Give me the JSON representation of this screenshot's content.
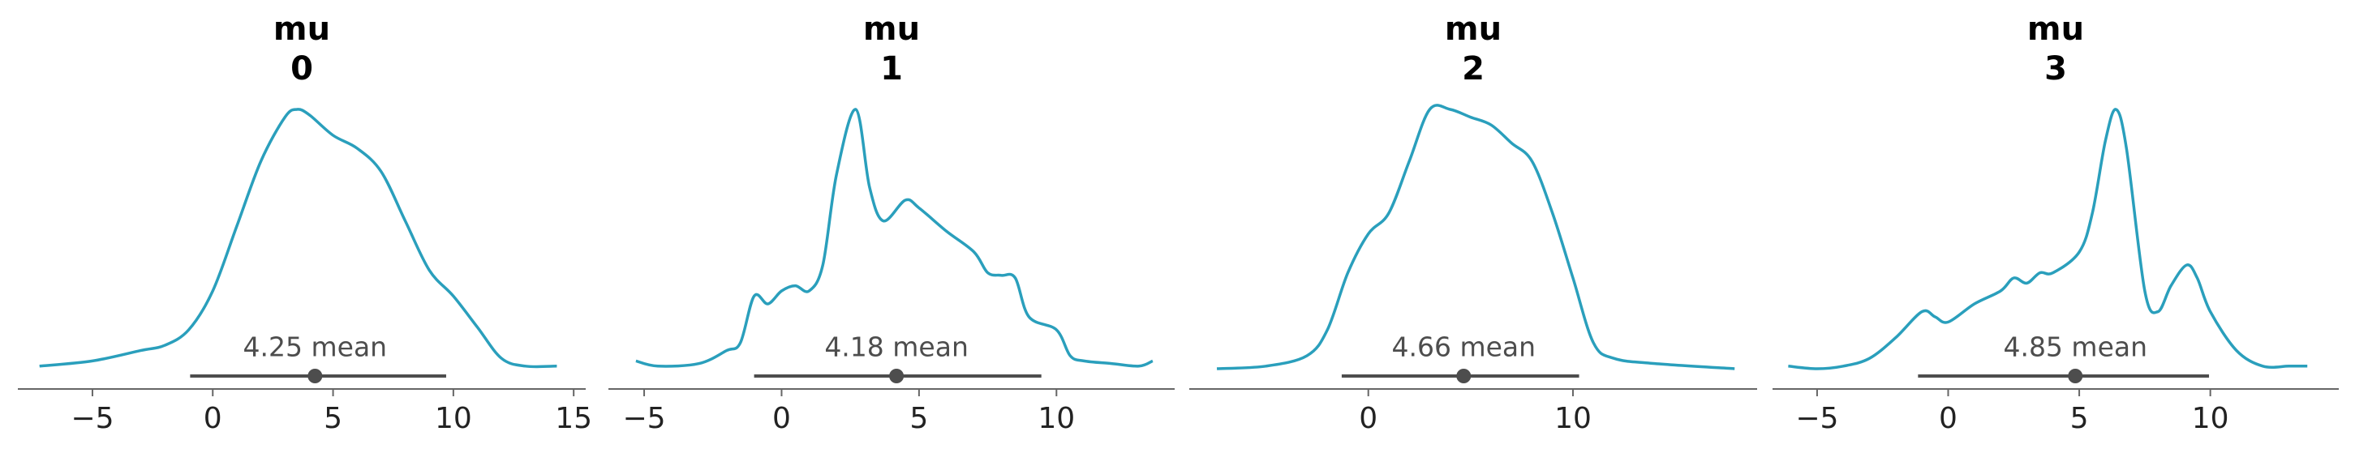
{
  "chart_data": [
    {
      "type": "density",
      "title_lines": [
        "mu",
        "0"
      ],
      "color": "#2a9fbc",
      "x": [
        -7.2,
        -5,
        -3,
        -2,
        -1,
        0,
        1,
        2,
        3,
        3.5,
        4,
        5,
        6,
        7,
        8,
        9,
        10,
        11,
        12,
        13,
        14.3
      ],
      "values": [
        0.01,
        0.03,
        0.07,
        0.09,
        0.15,
        0.3,
        0.55,
        0.8,
        0.97,
        1.0,
        0.98,
        0.9,
        0.85,
        0.76,
        0.57,
        0.38,
        0.28,
        0.16,
        0.04,
        0.01,
        0.01
      ],
      "hdi": [
        -0.94,
        9.7
      ],
      "mean": 4.25,
      "mean_label": "4.25 mean",
      "xlim": [
        -8.1,
        15.5
      ],
      "xticks": [
        {
          "value": -5,
          "label": "−5"
        },
        0,
        5,
        10,
        15
      ]
    },
    {
      "type": "density",
      "title_lines": [
        "mu",
        "1"
      ],
      "color": "#2a9fbc",
      "x": [
        -5.3,
        -4.5,
        -3,
        -2,
        -1.5,
        -1,
        -0.5,
        0,
        0.5,
        1,
        1.5,
        2,
        2.7,
        3.2,
        3.7,
        4.5,
        5,
        6,
        7,
        7.5,
        8,
        8.5,
        9,
        10,
        10.5,
        11,
        12,
        13,
        13.5
      ],
      "values": [
        0.03,
        0.01,
        0.02,
        0.07,
        0.1,
        0.28,
        0.25,
        0.3,
        0.32,
        0.3,
        0.4,
        0.75,
        1.0,
        0.7,
        0.57,
        0.65,
        0.62,
        0.53,
        0.45,
        0.37,
        0.36,
        0.35,
        0.2,
        0.15,
        0.05,
        0.03,
        0.02,
        0.01,
        0.03
      ],
      "hdi": [
        -1.0,
        9.45
      ],
      "mean": 4.18,
      "mean_label": "4.18 mean",
      "xlim": [
        -6.3,
        14.3
      ],
      "xticks": [
        {
          "value": -5,
          "label": "−5"
        },
        0,
        5,
        10
      ]
    },
    {
      "type": "density",
      "title_lines": [
        "mu",
        "2"
      ],
      "color": "#2a9fbc",
      "x": [
        -7.4,
        -5,
        -3,
        -2,
        -1,
        0,
        1,
        2,
        3,
        4,
        5,
        6,
        7,
        8,
        9,
        10,
        11,
        12,
        14,
        17.9
      ],
      "values": [
        0.0,
        0.01,
        0.05,
        0.15,
        0.37,
        0.52,
        0.6,
        0.8,
        1.0,
        1.0,
        0.97,
        0.94,
        0.87,
        0.8,
        0.6,
        0.35,
        0.1,
        0.04,
        0.02,
        0.0
      ],
      "hdi": [
        -1.3,
        10.3
      ],
      "mean": 4.66,
      "mean_label": "4.66 mean",
      "xlim": [
        -8.75,
        19.0
      ],
      "xticks": [
        0,
        10
      ]
    },
    {
      "type": "density",
      "title_lines": [
        "mu",
        "3"
      ],
      "color": "#2a9fbc",
      "x": [
        -6.1,
        -5,
        -4,
        -3,
        -2,
        -1,
        -0.5,
        0,
        1,
        2,
        2.5,
        3,
        3.5,
        4,
        5,
        5.5,
        6,
        6.4,
        6.8,
        7.5,
        8,
        8.5,
        9.1,
        9.5,
        10,
        11,
        12,
        13,
        13.7
      ],
      "values": [
        0.01,
        0.0,
        0.01,
        0.04,
        0.12,
        0.22,
        0.2,
        0.18,
        0.25,
        0.3,
        0.35,
        0.33,
        0.37,
        0.37,
        0.45,
        0.6,
        0.88,
        1.0,
        0.85,
        0.3,
        0.22,
        0.32,
        0.4,
        0.35,
        0.22,
        0.07,
        0.01,
        0.01,
        0.01
      ],
      "hdi": [
        -1.15,
        9.95
      ],
      "mean": 4.85,
      "mean_label": "4.85 mean",
      "xlim": [
        -6.7,
        14.9
      ],
      "xticks": [
        {
          "value": -5,
          "label": "−5"
        },
        0,
        5,
        10
      ]
    }
  ]
}
